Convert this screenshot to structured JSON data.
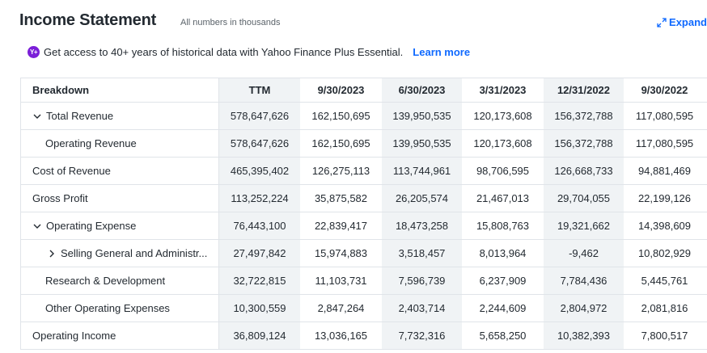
{
  "header": {
    "title": "Income Statement",
    "subtitle": "All numbers in thousands",
    "expand_label": "Expand"
  },
  "promo": {
    "icon": "yahoo-plus-icon",
    "icon_text": "Y+",
    "text": "Get access to 40+ years of historical data with Yahoo Finance Plus Essential.",
    "link": "Learn more"
  },
  "table": {
    "breakdown_label": "Breakdown",
    "columns": [
      "TTM",
      "9/30/2023",
      "6/30/2023",
      "3/31/2023",
      "12/31/2022",
      "9/30/2022"
    ],
    "rows": [
      {
        "label": "Total Revenue",
        "expander": "down",
        "values": [
          "578,647,626",
          "162,150,695",
          "139,950,535",
          "120,173,608",
          "156,372,788",
          "117,080,595"
        ]
      },
      {
        "label": "Operating Revenue",
        "expander": "",
        "values": [
          "578,647,626",
          "162,150,695",
          "139,950,535",
          "120,173,608",
          "156,372,788",
          "117,080,595"
        ]
      },
      {
        "label": "Cost of Revenue",
        "expander": "",
        "values": [
          "465,395,402",
          "126,275,113",
          "113,744,961",
          "98,706,595",
          "126,668,733",
          "94,881,469"
        ]
      },
      {
        "label": "Gross Profit",
        "expander": "",
        "values": [
          "113,252,224",
          "35,875,582",
          "26,205,574",
          "21,467,013",
          "29,704,055",
          "22,199,126"
        ]
      },
      {
        "label": "Operating Expense",
        "expander": "down",
        "values": [
          "76,443,100",
          "22,839,417",
          "18,473,258",
          "15,808,763",
          "19,321,662",
          "14,398,609"
        ]
      },
      {
        "label": "Selling General and Administr...",
        "expander": "right",
        "values": [
          "27,497,842",
          "15,974,883",
          "3,518,457",
          "8,013,964",
          "-9,462",
          "10,802,929"
        ]
      },
      {
        "label": "Research & Development",
        "expander": "",
        "values": [
          "32,722,815",
          "11,103,731",
          "7,596,739",
          "6,237,909",
          "7,784,436",
          "5,445,761"
        ]
      },
      {
        "label": "Other Operating Expenses",
        "expander": "",
        "values": [
          "10,300,559",
          "2,847,264",
          "2,403,714",
          "2,244,609",
          "2,804,972",
          "2,081,816"
        ]
      },
      {
        "label": "Operating Income",
        "expander": "",
        "values": [
          "36,809,124",
          "13,036,165",
          "7,732,316",
          "5,658,250",
          "10,382,393",
          "7,800,517"
        ]
      }
    ]
  },
  "colors": {
    "accent": "#0f69ff",
    "plus_purple": "#7b1fd8",
    "shade": "#f0f3f5"
  }
}
